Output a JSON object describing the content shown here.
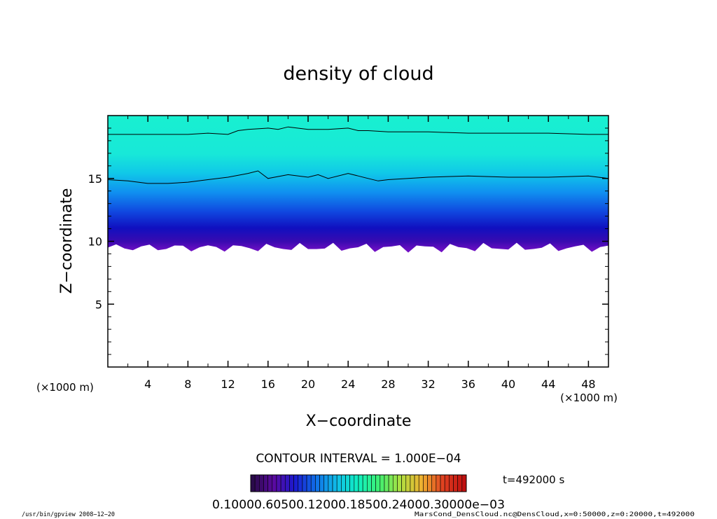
{
  "chart_data": {
    "type": "heatmap",
    "title": "density of cloud",
    "xlabel": "X−coordinate",
    "ylabel": "Z−coordinate",
    "x_unit_label": "(×1000 m)",
    "y_unit_label": "(×1000 m)",
    "xlim": [
      0,
      50
    ],
    "ylim": [
      0,
      20
    ],
    "x_ticks": [
      4,
      8,
      12,
      16,
      20,
      24,
      28,
      32,
      36,
      40,
      44,
      48
    ],
    "y_ticks": [
      5,
      10,
      15
    ],
    "contour_interval_label": "CONTOUR INTERVAL = 1.000E−04",
    "time_label": "t=492000 s",
    "colorbar": {
      "tick_labels_text": "0.10000.60500.12000.18500.24000.30000e−03",
      "colors": [
        "#2a0a4a",
        "#5a0aa0",
        "#1a1ad0",
        "#1070e8",
        "#10c0e8",
        "#10f0c0",
        "#40f070",
        "#b0e040",
        "#f0b030",
        "#e04020",
        "#c01010"
      ]
    },
    "field": {
      "cloud_base_km": 9.5,
      "cloud_top_km": 20,
      "contours": [
        {
          "name": "upper",
          "points": [
            [
              0,
              18.5
            ],
            [
              4,
              18.5
            ],
            [
              8,
              18.5
            ],
            [
              10,
              18.6
            ],
            [
              12,
              18.5
            ],
            [
              13,
              18.8
            ],
            [
              14,
              18.9
            ],
            [
              16,
              19.0
            ],
            [
              17,
              18.9
            ],
            [
              18,
              19.1
            ],
            [
              20,
              18.9
            ],
            [
              22,
              18.9
            ],
            [
              24,
              19.0
            ],
            [
              25,
              18.8
            ],
            [
              26,
              18.8
            ],
            [
              28,
              18.7
            ],
            [
              32,
              18.7
            ],
            [
              36,
              18.6
            ],
            [
              40,
              18.6
            ],
            [
              44,
              18.6
            ],
            [
              48,
              18.5
            ],
            [
              50,
              18.5
            ]
          ]
        },
        {
          "name": "lower",
          "points": [
            [
              0,
              14.9
            ],
            [
              2,
              14.8
            ],
            [
              4,
              14.6
            ],
            [
              6,
              14.6
            ],
            [
              8,
              14.7
            ],
            [
              10,
              14.9
            ],
            [
              12,
              15.1
            ],
            [
              14,
              15.4
            ],
            [
              15,
              15.6
            ],
            [
              16,
              15.0
            ],
            [
              18,
              15.3
            ],
            [
              20,
              15.1
            ],
            [
              21,
              15.3
            ],
            [
              22,
              15.0
            ],
            [
              24,
              15.4
            ],
            [
              25,
              15.2
            ],
            [
              26,
              15.0
            ],
            [
              27,
              14.8
            ],
            [
              28,
              14.9
            ],
            [
              30,
              15.0
            ],
            [
              32,
              15.1
            ],
            [
              36,
              15.2
            ],
            [
              40,
              15.1
            ],
            [
              44,
              15.1
            ],
            [
              48,
              15.2
            ],
            [
              50,
              15.0
            ]
          ]
        }
      ]
    }
  },
  "footer": {
    "left": "/usr/bin/gpview   2008−12−20",
    "right": "MarsCond_DensCloud.nc@DensCloud,x=0:50000,z=0:20000,t=492000"
  }
}
